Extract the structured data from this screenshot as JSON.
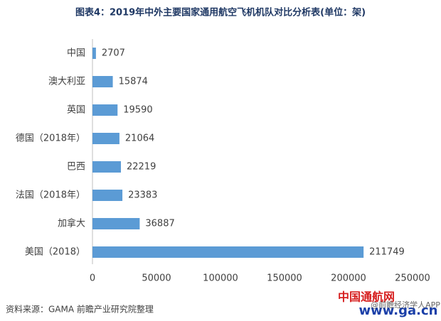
{
  "chart_data": {
    "type": "barh",
    "title": "图表4：2019年中外主要国家通用航空飞机机队对比分析表(单位：架)",
    "categories": [
      "中国",
      "澳大利亚",
      "英国",
      "德国（2018年）",
      "巴西",
      "法国（2018年）",
      "加拿大",
      "美国（2018）"
    ],
    "values": [
      2707,
      15874,
      19590,
      21064,
      22219,
      23383,
      36887,
      211749
    ],
    "color": "#5b9bd5",
    "xlim": [
      0,
      250000
    ],
    "xticks": [
      0,
      50000,
      100000,
      150000,
      200000,
      250000
    ],
    "source": "资料来源：GAMA 前瞻产业研究院整理",
    "watermarks": [
      "中国通航网",
      "www.ga.cn",
      "@前瞻经济学人APP"
    ]
  }
}
